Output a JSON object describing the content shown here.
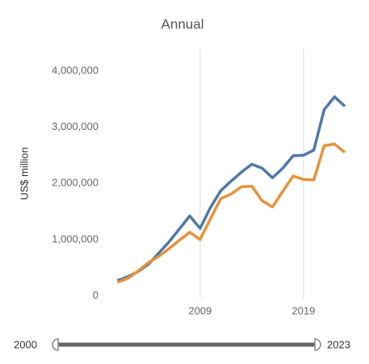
{
  "chart_data": {
    "type": "line",
    "title": "Annual",
    "y_label": "US$ million",
    "x": [
      2001,
      2002,
      2003,
      2004,
      2005,
      2006,
      2007,
      2008,
      2009,
      2010,
      2011,
      2012,
      2013,
      2014,
      2015,
      2016,
      2017,
      2018,
      2019,
      2020,
      2021,
      2022,
      2023
    ],
    "series": [
      {
        "color": "#4e79a7",
        "values": [
          270000,
          340000,
          430000,
          560000,
          760000,
          960000,
          1190000,
          1420000,
          1200000,
          1570000,
          1870000,
          2040000,
          2200000,
          2340000,
          2270000,
          2100000,
          2270000,
          2490000,
          2500000,
          2590000,
          3310000,
          3540000,
          3370000
        ]
      },
      {
        "color": "#e8923a",
        "values": [
          240000,
          310000,
          440000,
          590000,
          700000,
          840000,
          990000,
          1130000,
          1000000,
          1370000,
          1730000,
          1810000,
          1940000,
          1950000,
          1690000,
          1580000,
          1860000,
          2130000,
          2070000,
          2060000,
          2670000,
          2700000,
          2550000
        ]
      }
    ],
    "xlim": [
      1999.8,
      2024.4
    ],
    "xticks": [
      2009,
      2019
    ],
    "ylim": [
      -50000,
      4400000
    ],
    "yticks": [
      0,
      {
        "value": 1000000,
        "label": "1,000,000"
      },
      {
        "value": 2000000,
        "label": "2,000,000"
      },
      {
        "value": 3000000,
        "label": "3,000,000"
      },
      {
        "value": 4000000,
        "label": "4,000,000"
      }
    ],
    "grid": "x",
    "slider": {
      "min": 2000,
      "max": 2023
    }
  }
}
